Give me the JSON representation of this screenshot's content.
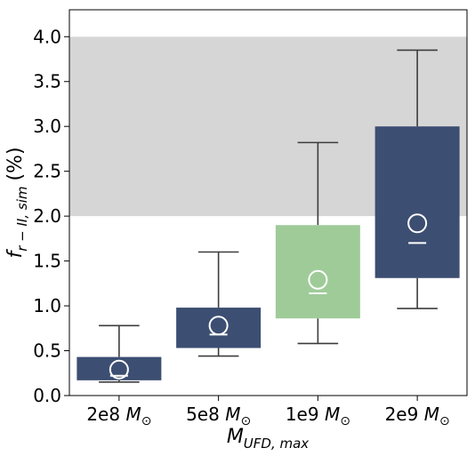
{
  "chart_data": {
    "type": "box",
    "xlabel": {
      "main": "M",
      "sub": "UFD, max"
    },
    "ylabel": {
      "main": "f",
      "sub": "r − II, sim",
      "unit": "(%)"
    },
    "ylim": [
      0,
      4.3
    ],
    "yticks": [
      "0.0",
      "0.5",
      "1.0",
      "1.5",
      "2.0",
      "2.5",
      "3.0",
      "3.5",
      "4.0"
    ],
    "shaded_band": {
      "y0": 2.0,
      "y1": 4.0,
      "color": "#d6d6d6"
    },
    "categories": [
      {
        "label": "2e8",
        "unit": "M",
        "unit_sub": "⊙",
        "color": "#3c4e72",
        "q1": 0.17,
        "q3": 0.43,
        "median": 0.22,
        "mean": 0.29,
        "whisker_low": 0.15,
        "whisker_high": 0.78
      },
      {
        "label": "5e8",
        "unit": "M",
        "unit_sub": "⊙",
        "color": "#3c4e72",
        "q1": 0.53,
        "q3": 0.98,
        "median": 0.68,
        "mean": 0.78,
        "whisker_low": 0.44,
        "whisker_high": 1.6
      },
      {
        "label": "1e9",
        "unit": "M",
        "unit_sub": "⊙",
        "color": "#9fcb99",
        "q1": 0.86,
        "q3": 1.9,
        "median": 1.14,
        "mean": 1.29,
        "whisker_low": 0.58,
        "whisker_high": 2.82
      },
      {
        "label": "2e9",
        "unit": "M",
        "unit_sub": "⊙",
        "color": "#3c4e72",
        "q1": 1.31,
        "q3": 3.0,
        "median": 1.7,
        "mean": 1.92,
        "whisker_low": 0.97,
        "whisker_high": 3.85
      }
    ]
  }
}
